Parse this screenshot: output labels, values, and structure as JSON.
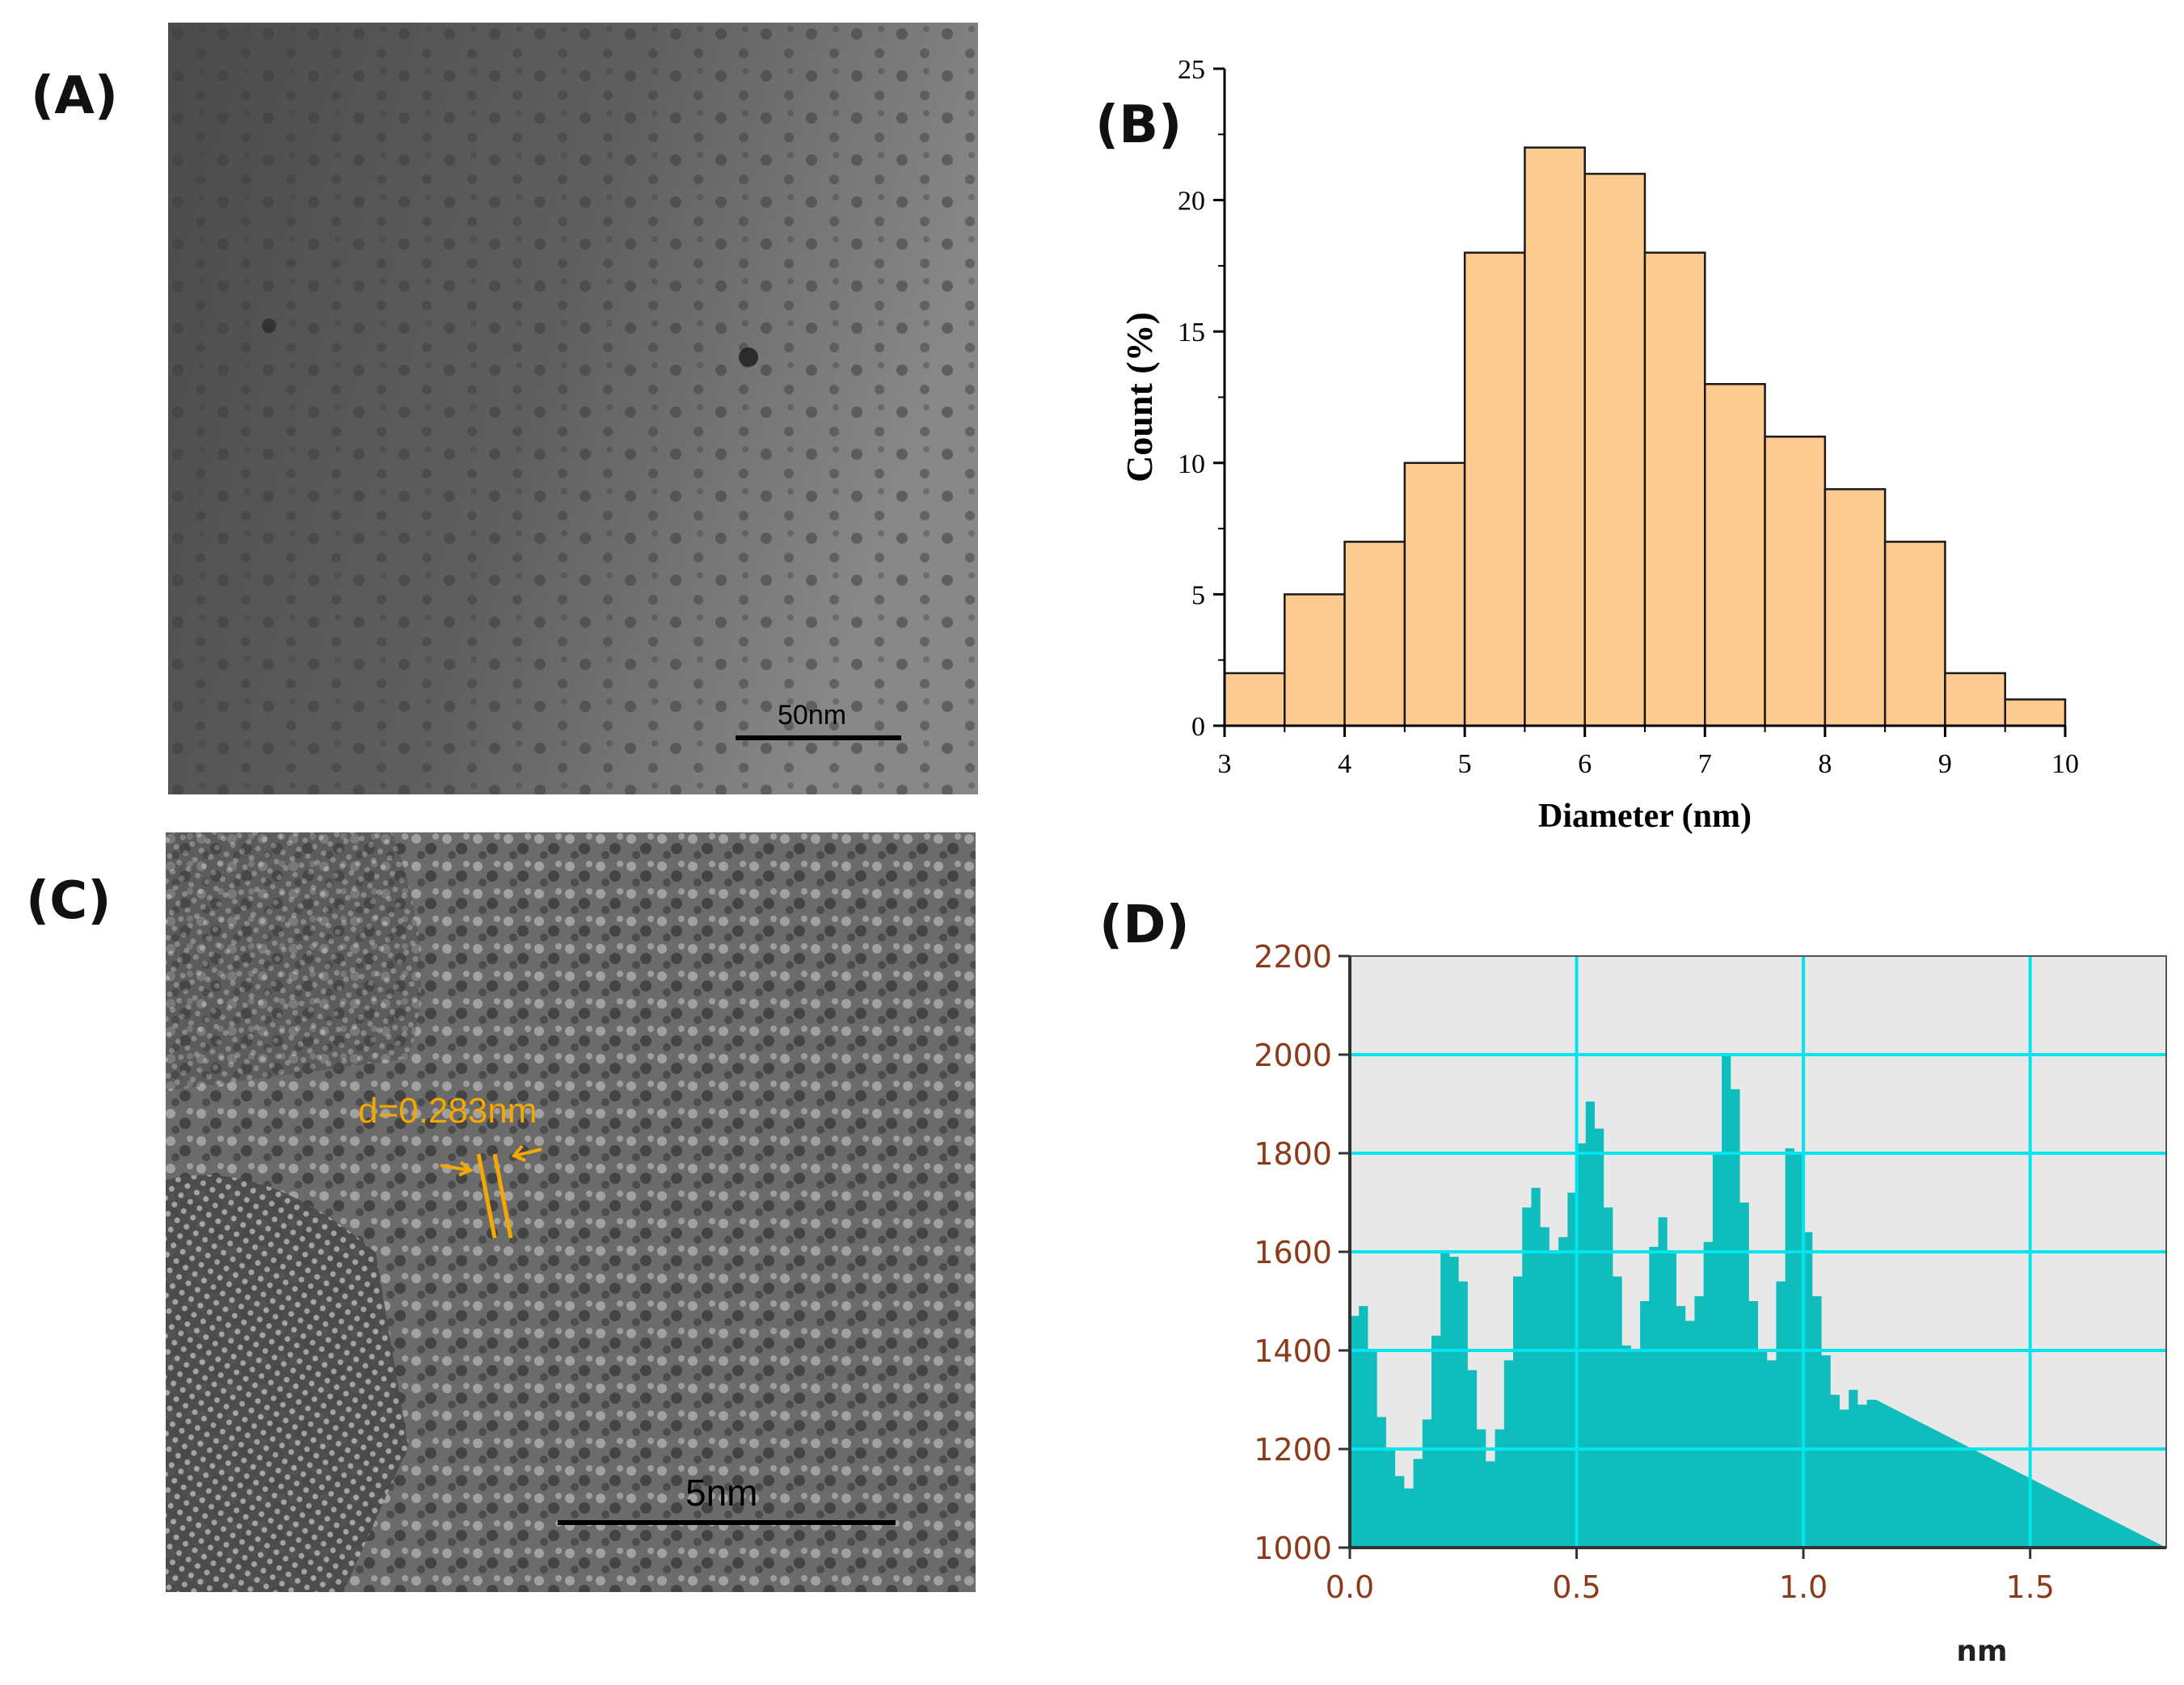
{
  "panels": {
    "a": {
      "label": "(A)",
      "scale_bar": "50nm"
    },
    "b": {
      "label": "(B)"
    },
    "c": {
      "label": "(C)",
      "scale_bar": "5nm",
      "annotation": "d=0.283nm"
    },
    "d": {
      "label": "(D)"
    }
  },
  "colors": {
    "hist_fill": "#fdca90",
    "hist_stroke": "#1a1a1a",
    "profile_fill": "#10bdbd",
    "profile_bg": "#e8e8e8",
    "grid": "#00e5f0",
    "annotation": "#f5a800",
    "d_tick_text": "#8b3a1a"
  },
  "chart_data": [
    {
      "id": "histogram",
      "type": "bar",
      "title": "",
      "xlabel": "Diameter (nm)",
      "ylabel": "Count (%)",
      "bin_edges": [
        3,
        3.5,
        4,
        4.5,
        5,
        5.5,
        6,
        6.5,
        7,
        7.5,
        8,
        8.5,
        9,
        9.5,
        10
      ],
      "values": [
        2,
        5,
        7,
        10,
        18,
        22,
        21,
        18,
        13,
        11,
        9,
        7,
        2,
        1
      ],
      "xlim": [
        3,
        10
      ],
      "ylim": [
        0,
        25
      ],
      "xticks": [
        "3",
        "4",
        "5",
        "6",
        "7",
        "8",
        "9",
        "10"
      ],
      "yticks": [
        "0",
        "5",
        "10",
        "15",
        "20",
        "25"
      ],
      "grid": false
    },
    {
      "id": "line-profile",
      "type": "area",
      "title": "",
      "xlabel": "nm",
      "ylabel": "",
      "xlim": [
        0,
        1.8
      ],
      "ylim": [
        1000,
        2200
      ],
      "xticks": [
        "0.0",
        "0.5",
        "1.0",
        "1.5"
      ],
      "yticks": [
        "1000",
        "1200",
        "1400",
        "1600",
        "1800",
        "2000",
        "2200"
      ],
      "grid": true,
      "step": 0.02,
      "values": [
        1470,
        1490,
        1400,
        1265,
        1200,
        1145,
        1120,
        1180,
        1260,
        1430,
        1600,
        1590,
        1540,
        1360,
        1240,
        1175,
        1240,
        1380,
        1550,
        1690,
        1730,
        1650,
        1600,
        1630,
        1720,
        1820,
        1905,
        1850,
        1690,
        1550,
        1410,
        1400,
        1500,
        1610,
        1670,
        1600,
        1490,
        1460,
        1510,
        1620,
        1800,
        2000,
        1930,
        1700,
        1500,
        1400,
        1380,
        1540,
        1810,
        1800,
        1640,
        1510,
        1390,
        1310,
        1280,
        1320,
        1290,
        1300
      ]
    }
  ]
}
